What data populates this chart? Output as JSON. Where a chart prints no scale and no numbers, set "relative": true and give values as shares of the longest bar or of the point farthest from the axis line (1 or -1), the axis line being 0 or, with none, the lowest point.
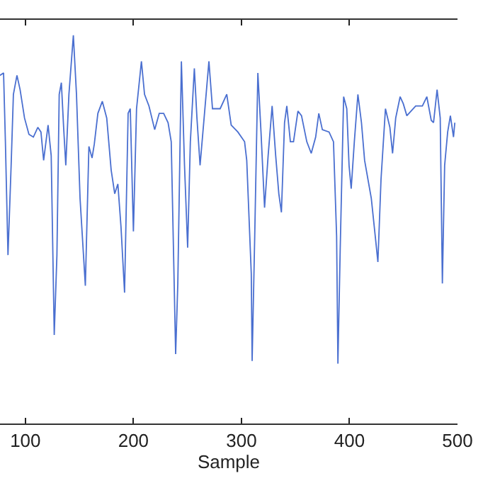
{
  "chart_data": {
    "type": "line",
    "xlabel": "Sample",
    "relative": true,
    "tick_labels": "x",
    "xlim": [
      76.5,
      500
    ],
    "xticks": [
      100,
      200,
      300,
      400,
      500
    ],
    "x": [
      76.5,
      79.8,
      81.5,
      83.9,
      86.8,
      88.9,
      92.2,
      95.1,
      99.2,
      103.3,
      107.4,
      111.5,
      114.4,
      116.9,
      121.0,
      123.9,
      126.7,
      129.2,
      131.3,
      133.3,
      135.4,
      137.4,
      140.3,
      144.4,
      147.3,
      150.6,
      155.5,
      158.8,
      161.7,
      163.8,
      167.1,
      171.2,
      175.3,
      179.4,
      182.7,
      185.6,
      188.5,
      191.8,
      195.1,
      197.1,
      200.0,
      202.9,
      207.4,
      210.3,
      214.4,
      219.7,
      223.9,
      228.0,
      232.1,
      235.0,
      239.1,
      241.1,
      244.4,
      247.3,
      250.2,
      252.7,
      256.4,
      258.8,
      261.7,
      265.8,
      269.9,
      273.2,
      278.2,
      280.3,
      286.4,
      290.5,
      296.7,
      302.9,
      304.9,
      309.1,
      309.9,
      312.3,
      315.2,
      318.1,
      321.4,
      324.7,
      328.4,
      331.7,
      334.6,
      337.0,
      339.9,
      342.0,
      345.3,
      348.2,
      352.3,
      355.6,
      360.5,
      364.6,
      368.7,
      371.6,
      374.9,
      381.1,
      385.2,
      388.1,
      389.3,
      391.4,
      394.6,
      397.5,
      399.6,
      401.6,
      404.5,
      407.8,
      411.1,
      414.0,
      420.2,
      424.3,
      426.3,
      429.2,
      433.3,
      437.4,
      439.9,
      442.8,
      446.9,
      449.8,
      453.1,
      461.3,
      467.5,
      471.6,
      475.7,
      477.8,
      481.1,
      484.0,
      486.0,
      488.1,
      490.9,
      493.4,
      496.3,
      497.5
    ],
    "series": [
      {
        "color": "#4a6fd0",
        "values": [
          0.897,
          0.903,
          0.726,
          0.434,
          0.665,
          0.848,
          0.897,
          0.86,
          0.787,
          0.745,
          0.738,
          0.763,
          0.751,
          0.678,
          0.769,
          0.69,
          0.228,
          0.434,
          0.848,
          0.878,
          0.763,
          0.665,
          0.848,
          1.0,
          0.848,
          0.58,
          0.355,
          0.714,
          0.684,
          0.72,
          0.799,
          0.83,
          0.787,
          0.653,
          0.592,
          0.617,
          0.507,
          0.337,
          0.799,
          0.811,
          0.495,
          0.811,
          0.933,
          0.848,
          0.818,
          0.757,
          0.799,
          0.799,
          0.775,
          0.726,
          0.179,
          0.361,
          0.933,
          0.665,
          0.453,
          0.726,
          0.915,
          0.787,
          0.665,
          0.799,
          0.933,
          0.811,
          0.811,
          0.811,
          0.848,
          0.769,
          0.751,
          0.726,
          0.678,
          0.386,
          0.161,
          0.483,
          0.903,
          0.751,
          0.556,
          0.69,
          0.818,
          0.69,
          0.592,
          0.544,
          0.775,
          0.818,
          0.726,
          0.726,
          0.805,
          0.793,
          0.726,
          0.696,
          0.738,
          0.799,
          0.757,
          0.751,
          0.726,
          0.483,
          0.154,
          0.446,
          0.842,
          0.811,
          0.665,
          0.605,
          0.726,
          0.848,
          0.775,
          0.678,
          0.58,
          0.471,
          0.416,
          0.629,
          0.811,
          0.763,
          0.696,
          0.787,
          0.842,
          0.824,
          0.793,
          0.818,
          0.818,
          0.842,
          0.781,
          0.775,
          0.86,
          0.787,
          0.361,
          0.665,
          0.751,
          0.793,
          0.738,
          0.775
        ]
      }
    ]
  }
}
